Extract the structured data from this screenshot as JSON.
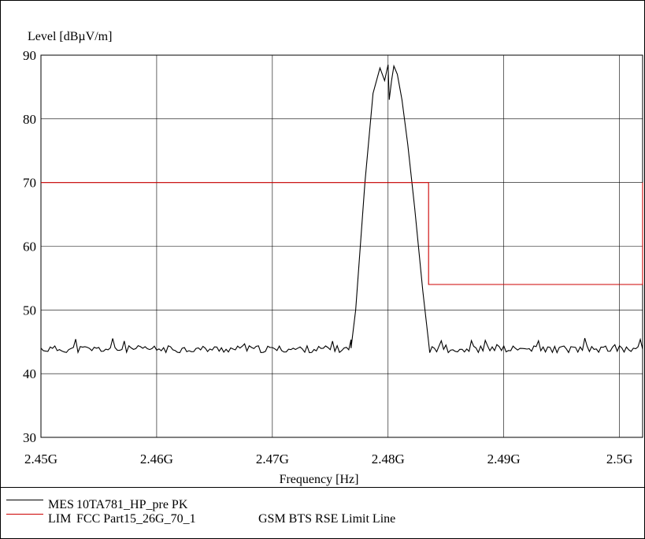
{
  "chart_data": {
    "type": "line",
    "ylabel": "Level [dBµV/m]",
    "xlabel": "Frequency [Hz]",
    "xlim": [
      2.45,
      2.502
    ],
    "ylim": [
      30,
      90
    ],
    "x_ticks": [
      {
        "value": 2.45,
        "label": "2.45G"
      },
      {
        "value": 2.46,
        "label": "2.46G"
      },
      {
        "value": 2.47,
        "label": "2.47G"
      },
      {
        "value": 2.48,
        "label": "2.48G"
      },
      {
        "value": 2.49,
        "label": "2.49G"
      },
      {
        "value": 2.5,
        "label": "2.5G"
      }
    ],
    "y_ticks": [
      {
        "value": 30,
        "label": "30"
      },
      {
        "value": 40,
        "label": "40"
      },
      {
        "value": 50,
        "label": "50"
      },
      {
        "value": 60,
        "label": "60"
      },
      {
        "value": 70,
        "label": "70"
      },
      {
        "value": 80,
        "label": "80"
      },
      {
        "value": 90,
        "label": "90"
      }
    ],
    "grid": true,
    "series": [
      {
        "abbr": "MES",
        "name": "10TA781_HP_pre PK",
        "color": "#000000",
        "noise_floor": {
          "from": 2.45,
          "to": 2.502,
          "min": 42.8,
          "max": 46.0
        },
        "x": [
          2.45,
          2.4505,
          2.4508,
          2.4511,
          2.4515,
          2.452,
          2.4525,
          2.453,
          2.4535,
          2.454,
          2.4545,
          2.455,
          2.456,
          2.457,
          2.458,
          2.459,
          2.46,
          2.461,
          2.462,
          2.463,
          2.464,
          2.465,
          2.466,
          2.467,
          2.468,
          2.469,
          2.47,
          2.471,
          2.472,
          2.473,
          2.474,
          2.475,
          2.476,
          2.4768,
          2.4772,
          2.478,
          2.4787,
          2.4793,
          2.4797,
          2.48,
          2.4801,
          2.4803,
          2.4805,
          2.4808,
          2.4812,
          2.4817,
          2.4823,
          2.483,
          2.4835,
          2.484,
          2.485,
          2.486,
          2.487,
          2.488,
          2.489,
          2.49,
          2.491,
          2.492,
          2.493,
          2.494,
          2.495,
          2.496,
          2.497,
          2.498,
          2.499,
          2.5,
          2.501,
          2.5015,
          2.502
        ],
        "values": [
          44.5,
          44.0,
          45.8,
          43.2,
          43.5,
          44.3,
          43.0,
          44.6,
          43.7,
          44.2,
          43.4,
          43.7,
          43.3,
          44.0,
          43.6,
          43.1,
          43.8,
          43.4,
          44.1,
          43.5,
          43.2,
          43.9,
          43.7,
          44.2,
          43.3,
          43.6,
          43.8,
          43.4,
          44.0,
          43.5,
          43.7,
          43.5,
          43.6,
          44.0,
          50.0,
          70.0,
          84.0,
          88.0,
          86.0,
          88.5,
          83.0,
          86.0,
          88.3,
          87.0,
          83.0,
          76.0,
          66.0,
          53.0,
          45.0,
          43.6,
          43.9,
          43.2,
          43.8,
          43.0,
          43.7,
          43.5,
          43.6,
          43.1,
          43.9,
          44.2,
          43.4,
          43.8,
          44.1,
          43.3,
          43.7,
          43.6,
          43.5,
          43.0,
          43.6
        ]
      },
      {
        "abbr": "LIM",
        "name": "FCC Part15_26G_70_1",
        "description": "GSM BTS RSE Limit Line",
        "color": "#cc0000",
        "x": [
          2.45,
          2.4835,
          2.4835,
          2.502,
          2.502
        ],
        "values": [
          70,
          70,
          54,
          54,
          70
        ]
      }
    ]
  }
}
